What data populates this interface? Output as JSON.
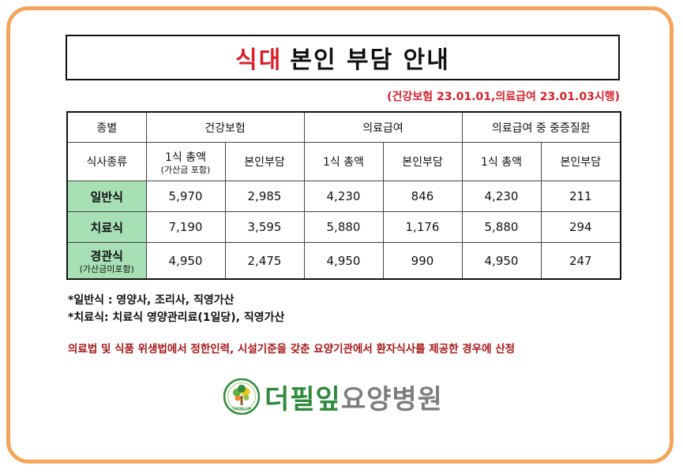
{
  "title": {
    "red": "식대",
    "rest": "본인 부담 안내"
  },
  "effective": "(건강보험 23.01.01,의료급여 23.01.03시행)",
  "table": {
    "h_type": "종별",
    "h_health": "건강보험",
    "h_medical": "의료급여",
    "h_severe": "의료급여 중 중증질환",
    "h_mealtype": "식사종류",
    "h_total_with_sub": "1식 총액",
    "h_total_sub": "(가산금 포함)",
    "h_self": "본인부담",
    "h_total": "1식 총액",
    "rows": [
      {
        "name": "일반식",
        "sub": "",
        "v": [
          "5,970",
          "2,985",
          "4,230",
          "846",
          "4,230",
          "211"
        ]
      },
      {
        "name": "치료식",
        "sub": "",
        "v": [
          "7,190",
          "3,595",
          "5,880",
          "1,176",
          "5,880",
          "294"
        ]
      },
      {
        "name": "경관식",
        "sub": "(가산금미포함)",
        "v": [
          "4,950",
          "2,475",
          "4,950",
          "990",
          "4,950",
          "247"
        ]
      }
    ]
  },
  "notes": [
    "*일반식 :  영양사, 조리사, 직영가산",
    "*치료식: 치료식 영양관리료(1일당), 직영가산"
  ],
  "legal": "의료법 및 식품 위생법에서 정한인력, 시설기준을 갖춘 요양기관에서 환자식사를 제공한 경우에 산정",
  "logo": {
    "name_a": "더필잎",
    "name_b": "요양병원",
    "mark_text": "THEPILLIP"
  }
}
